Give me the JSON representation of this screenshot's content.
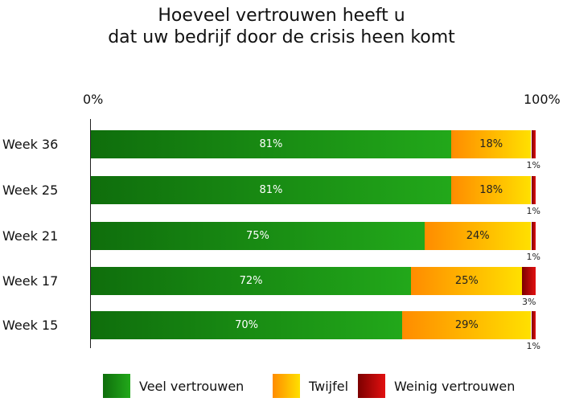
{
  "chart_data": {
    "type": "bar",
    "orientation": "horizontal",
    "stacked": true,
    "title": [
      "Hoeveel vertrouwen heeft u",
      "dat uw bedrijf door de crisis heen komt"
    ],
    "axis_min_label": "0%",
    "axis_max_label": "100%",
    "xlim": [
      0,
      100
    ],
    "grid": false,
    "legend_position": "bottom",
    "categories": [
      "Week 36",
      "Week 25",
      "Week 21",
      "Week 17",
      "Week 15"
    ],
    "series": [
      {
        "name": "Veel vertrouwen",
        "color": "#1a8f14",
        "values": [
          81,
          81,
          75,
          72,
          70
        ],
        "labels": [
          "81%",
          "81%",
          "75%",
          "72%",
          "70%"
        ]
      },
      {
        "name": "Twijfel",
        "color": "#ffb000",
        "values": [
          18,
          18,
          24,
          25,
          29
        ],
        "labels": [
          "18%",
          "18%",
          "24%",
          "25%",
          "29%"
        ]
      },
      {
        "name": "Weinig vertrouwen",
        "color": "#b80000",
        "values": [
          1,
          1,
          1,
          3,
          1
        ],
        "labels": [
          "1%",
          "1%",
          "1%",
          "3%",
          "1%"
        ]
      }
    ]
  }
}
